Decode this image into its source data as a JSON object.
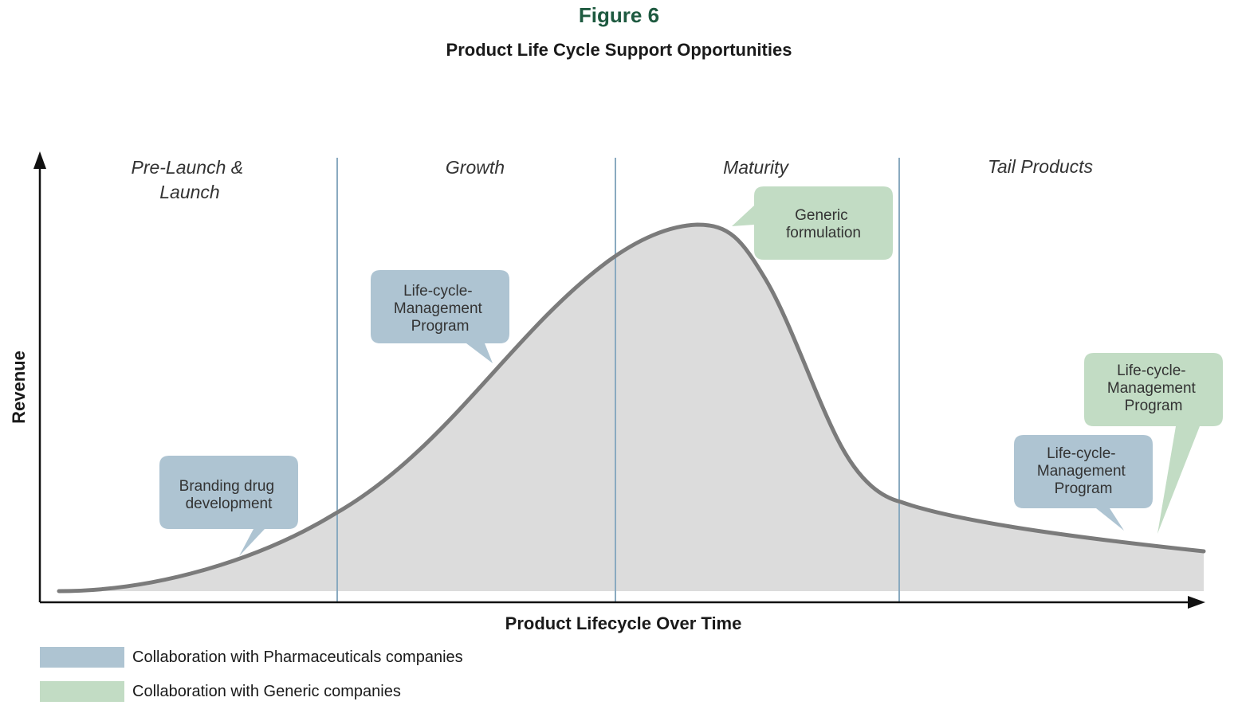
{
  "figure_label": "Figure 6",
  "title": "Product Life Cycle Support Opportunities",
  "y_axis_label": "Revenue",
  "x_axis_label": "Product Lifecycle Over Time",
  "colors": {
    "pharma": "#aec4d2",
    "generic": "#c2dcc4",
    "curve": "#7b7b7b",
    "fill": "#dcdcdc",
    "divider": "#8aaac0",
    "title_green": "#1e5a40"
  },
  "phases": [
    {
      "label_lines": [
        "Pre-Launch &",
        "Launch"
      ]
    },
    {
      "label_lines": [
        "Growth"
      ]
    },
    {
      "label_lines": [
        "Maturity"
      ]
    },
    {
      "label_lines": [
        "Tail Products"
      ]
    }
  ],
  "bubbles": [
    {
      "type": "pharma",
      "lines": [
        "Branding drug",
        "development"
      ]
    },
    {
      "type": "pharma",
      "lines": [
        "Life-cycle-",
        "Management",
        "Program"
      ]
    },
    {
      "type": "generic",
      "lines": [
        "Generic",
        "formulation"
      ]
    },
    {
      "type": "generic",
      "lines": [
        "Life-cycle-",
        "Management",
        "Program"
      ]
    },
    {
      "type": "pharma",
      "lines": [
        "Life-cycle-",
        "Management",
        "Program"
      ]
    }
  ],
  "legend": [
    {
      "type": "pharma",
      "label": "Collaboration with Pharmaceuticals companies"
    },
    {
      "type": "generic",
      "label": "Collaboration with Generic companies"
    }
  ]
}
